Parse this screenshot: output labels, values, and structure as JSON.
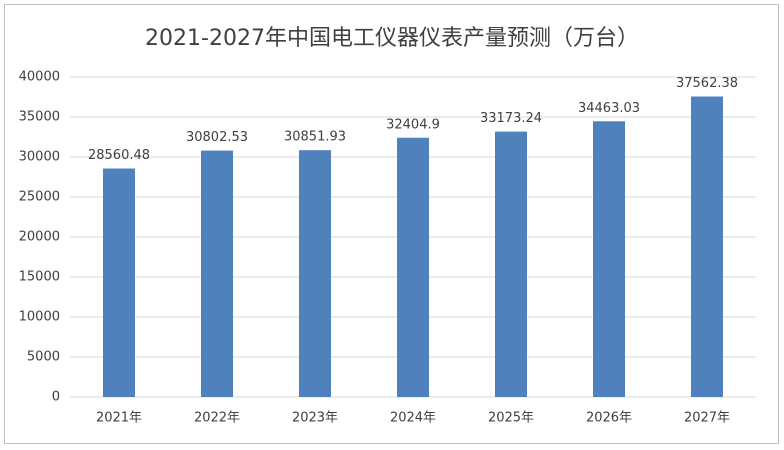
{
  "chart_data": {
    "type": "bar",
    "title": "2021-2027年中国电工仪器仪表产量预测（万台）",
    "categories": [
      "2021年",
      "2022年",
      "2023年",
      "2024年",
      "2025年",
      "2026年",
      "2027年"
    ],
    "values": [
      28560.48,
      30802.53,
      30851.93,
      32404.9,
      33173.24,
      34463.03,
      37562.38
    ],
    "color": "#4f81bd",
    "ylim": [
      0,
      40000
    ],
    "yticks": [
      0,
      5000,
      10000,
      15000,
      20000,
      25000,
      30000,
      35000,
      40000
    ],
    "grid": true
  }
}
